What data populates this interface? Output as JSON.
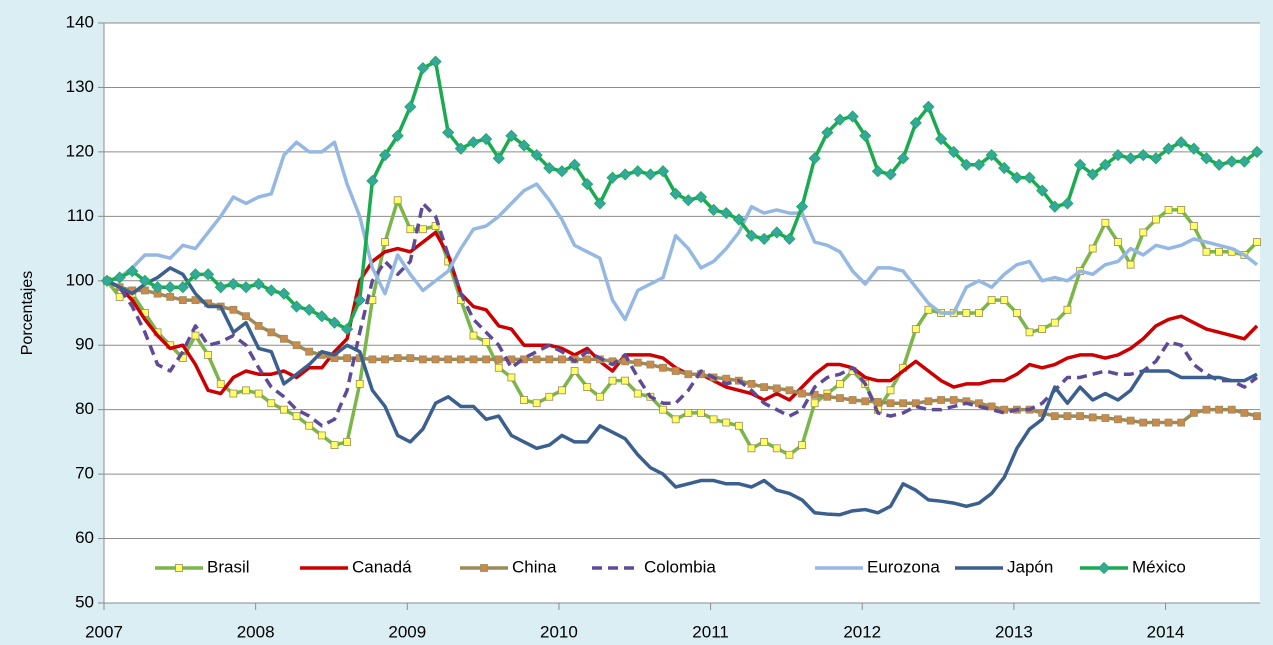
{
  "chart_data": {
    "type": "line",
    "y_axis_label": "Porcentajes",
    "categories": [
      "2007",
      null,
      null,
      null,
      null,
      null,
      null,
      null,
      null,
      null,
      null,
      null,
      "2008",
      null,
      null,
      null,
      null,
      null,
      null,
      null,
      null,
      null,
      null,
      null,
      "2009",
      null,
      null,
      null,
      null,
      null,
      null,
      null,
      null,
      null,
      null,
      null,
      "2010",
      null,
      null,
      null,
      null,
      null,
      null,
      null,
      null,
      null,
      null,
      null,
      "2011",
      null,
      null,
      null,
      null,
      null,
      null,
      null,
      null,
      null,
      null,
      null,
      "2012",
      null,
      null,
      null,
      null,
      null,
      null,
      null,
      null,
      null,
      null,
      null,
      "2013",
      null,
      null,
      null,
      null,
      null,
      null,
      null,
      null,
      null,
      null,
      null,
      "2014",
      null,
      null,
      null,
      null,
      null,
      null,
      null
    ],
    "ylim": [
      50,
      140
    ],
    "yticks": [
      50,
      60,
      70,
      80,
      90,
      100,
      110,
      120,
      130,
      140
    ],
    "grid": true,
    "legend": "bottom",
    "series": [
      {
        "name": "Brasil",
        "color": "#7ab648",
        "marker": "square",
        "marker_color": "#ffff66",
        "values": [
          100,
          97.5,
          98,
          95,
          92,
          90,
          88,
          91.5,
          88.5,
          84,
          82.5,
          83,
          82.5,
          81,
          80,
          79,
          77.5,
          76,
          74.5,
          75,
          84,
          97,
          106,
          112.5,
          108,
          108,
          108.5,
          103,
          97,
          91.5,
          90.5,
          86.5,
          85,
          81.5,
          81,
          82,
          83,
          86,
          83.5,
          82,
          84.5,
          84.5,
          82.5,
          82,
          80,
          78.5,
          79.5,
          79.5,
          78.5,
          78,
          77.5,
          74,
          75,
          74,
          73,
          74.5,
          81,
          82.5,
          84,
          86,
          84,
          80,
          83,
          86.5,
          92.5,
          95.5,
          95,
          95,
          95,
          95,
          97,
          97,
          95,
          92,
          92.5,
          93.5,
          95.5,
          101.5,
          105,
          109,
          106,
          102.5,
          107.5,
          109.5,
          111,
          111,
          108.5,
          104.5,
          104.5,
          104.5,
          104,
          106
        ]
      },
      {
        "name": "Canadá",
        "color": "#cc0000",
        "values": [
          100,
          99,
          97,
          94,
          91.5,
          89.5,
          90,
          87,
          83,
          82.5,
          85,
          86,
          85.5,
          85.5,
          86,
          85,
          86.5,
          86.5,
          89,
          91,
          100,
          103,
          104.5,
          105,
          104.5,
          106,
          107.5,
          104,
          98,
          96,
          95.5,
          93,
          92.5,
          90,
          90,
          90,
          89.5,
          88.5,
          89.5,
          87.5,
          86,
          88.5,
          88.5,
          88.5,
          88,
          86.5,
          85.5,
          85.5,
          84.5,
          83.5,
          83,
          82.5,
          81.5,
          82.5,
          81.5,
          83.5,
          85.5,
          87,
          87,
          86.5,
          85,
          84.5,
          84.5,
          86,
          87.5,
          86,
          84.5,
          83.5,
          84,
          84,
          84.5,
          84.5,
          85.5,
          87,
          86.5,
          87,
          88,
          88.5,
          88.5,
          88,
          88.5,
          89.5,
          91,
          93,
          94,
          94.5,
          93.5,
          92.5,
          92,
          91.5,
          91,
          93
        ]
      },
      {
        "name": "China",
        "color": "#9c8a5a",
        "marker": "square",
        "marker_color": "#c98a4b",
        "values": [
          100,
          99,
          98.5,
          98.5,
          98,
          97.5,
          97,
          97,
          96.5,
          96,
          95.5,
          94.5,
          93,
          92,
          91,
          90,
          89,
          88.5,
          88,
          88,
          88,
          87.8,
          87.8,
          88,
          88,
          87.8,
          87.8,
          87.8,
          87.8,
          87.8,
          87.8,
          87.8,
          87.8,
          87.8,
          87.8,
          87.8,
          87.8,
          87.8,
          87.8,
          87.8,
          87.5,
          87.5,
          87.3,
          87,
          86.5,
          86,
          85.5,
          85.5,
          85,
          84.8,
          84.5,
          84,
          83.5,
          83.3,
          83,
          82.5,
          82.3,
          82,
          81.8,
          81.5,
          81.3,
          81.2,
          81,
          81,
          81,
          81.3,
          81.5,
          81.5,
          81.3,
          81,
          80.5,
          80,
          80,
          80,
          79.5,
          79,
          79,
          79,
          78.8,
          78.7,
          78.5,
          78.3,
          78,
          78,
          78,
          78,
          79.5,
          80,
          80,
          80,
          79.5,
          79
        ]
      },
      {
        "name": "Colombia",
        "color": "#5f4a98",
        "dash": true,
        "values": [
          100,
          99,
          96,
          92,
          87,
          86,
          89,
          93,
          90,
          90.5,
          91.5,
          90,
          86.5,
          83.5,
          82,
          80,
          79,
          77.5,
          78.5,
          83,
          92,
          100,
          103,
          101,
          103,
          112,
          110,
          104,
          98,
          94,
          92,
          90,
          86.5,
          88,
          89,
          90,
          89,
          87.5,
          89,
          88,
          87,
          88.5,
          85,
          82,
          81,
          81,
          83,
          86,
          85,
          84,
          84.5,
          83,
          81,
          80,
          79,
          80,
          83.5,
          85,
          85.5,
          86.5,
          84,
          79.5,
          79,
          79.5,
          80.5,
          80,
          80,
          80.5,
          81,
          80.5,
          80,
          79.5,
          80,
          80,
          81,
          83,
          85,
          85,
          85.5,
          86,
          85.5,
          85.5,
          86,
          87.5,
          90.5,
          90,
          87,
          85.5,
          84.5,
          84.5,
          83.5,
          85
        ]
      },
      {
        "name": "Eurozona",
        "color": "#95b8e3",
        "values": [
          100,
          100.5,
          102,
          104,
          104,
          103.5,
          105.5,
          105,
          107.5,
          110,
          113,
          112,
          113,
          113.5,
          119.5,
          121.5,
          120,
          120,
          121.5,
          115,
          110,
          102,
          98,
          104,
          101,
          98.5,
          100,
          101.5,
          105,
          108,
          108.5,
          110,
          112,
          114,
          115,
          112.5,
          109.5,
          105.5,
          104.5,
          103.5,
          97,
          94,
          98.5,
          99.5,
          100.5,
          107,
          105,
          102,
          103,
          105,
          107.5,
          111.5,
          110.5,
          111,
          110.5,
          110.5,
          106,
          105.5,
          104.5,
          101.5,
          99.5,
          102,
          102,
          101.5,
          99,
          96.5,
          95,
          95,
          99,
          100,
          99,
          101,
          102.5,
          103,
          100,
          100.5,
          100,
          101.5,
          101,
          102.5,
          103,
          105,
          104,
          105.5,
          105,
          105.5,
          106.5,
          106,
          105.5,
          105,
          104,
          102.5
        ]
      },
      {
        "name": "Japón",
        "color": "#3b5f8e",
        "values": [
          100,
          99,
          98,
          99.5,
          100.5,
          102,
          101,
          98,
          96,
          96,
          92,
          93.5,
          89.5,
          89,
          84,
          85.5,
          87,
          89,
          88.5,
          90,
          89,
          83,
          80.5,
          76,
          75,
          77,
          81,
          82,
          80.5,
          80.5,
          78.5,
          79,
          76,
          75,
          74,
          74.5,
          76,
          75,
          75,
          77.5,
          76.5,
          75.5,
          73,
          71,
          70,
          68,
          68.5,
          69,
          69,
          68.5,
          68.5,
          68,
          69,
          67.5,
          67,
          66,
          64,
          63.8,
          63.7,
          64.3,
          64.5,
          64,
          65,
          68.5,
          67.5,
          66,
          65.8,
          65.5,
          65,
          65.5,
          67,
          69.5,
          74,
          77,
          78.5,
          83.5,
          81,
          83.5,
          81.5,
          82.5,
          81.5,
          83,
          86,
          86,
          86,
          85,
          85,
          85,
          85,
          84.5,
          84.5,
          85.5
        ]
      },
      {
        "name": "México",
        "color": "#1aaa50",
        "marker": "diamond",
        "marker_color": "#33a89c",
        "values": [
          100,
          100.5,
          101.5,
          100,
          99,
          99,
          99,
          101,
          101,
          99,
          99.5,
          99,
          99.5,
          98.5,
          98,
          96,
          95.5,
          94.5,
          93.5,
          92.5,
          97,
          115.5,
          119.5,
          122.5,
          127,
          133,
          134,
          123,
          120.5,
          121.5,
          122,
          119,
          122.5,
          121,
          119.5,
          117.5,
          117,
          118,
          115,
          112,
          116,
          116.5,
          117,
          116.5,
          117,
          113.5,
          112.5,
          113,
          111,
          110.5,
          109.5,
          107,
          106.5,
          107.5,
          106.5,
          111.5,
          119,
          123,
          125,
          125.5,
          122.5,
          117,
          116.5,
          119,
          124.5,
          127,
          122,
          120,
          118,
          118,
          119.5,
          117.5,
          116,
          116,
          114,
          111.5,
          112,
          118,
          116.5,
          118,
          119.5,
          119,
          119.5,
          119,
          120.5,
          121.5,
          120.5,
          119,
          118,
          118.5,
          118.5,
          120
        ]
      }
    ]
  }
}
